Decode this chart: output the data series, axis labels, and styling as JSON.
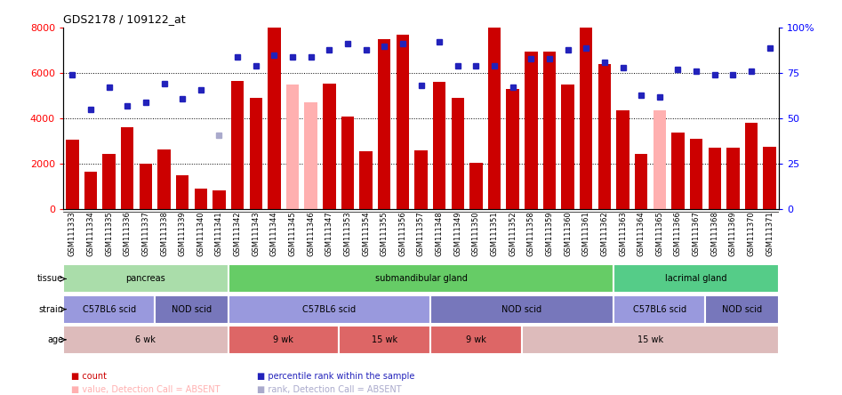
{
  "title": "GDS2178 / 109122_at",
  "samples": [
    "GSM111333",
    "GSM111334",
    "GSM111335",
    "GSM111336",
    "GSM111337",
    "GSM111338",
    "GSM111339",
    "GSM111340",
    "GSM111341",
    "GSM111342",
    "GSM111343",
    "GSM111344",
    "GSM111345",
    "GSM111346",
    "GSM111347",
    "GSM111353",
    "GSM111354",
    "GSM111355",
    "GSM111356",
    "GSM111357",
    "GSM111348",
    "GSM111349",
    "GSM111350",
    "GSM111351",
    "GSM111352",
    "GSM111358",
    "GSM111359",
    "GSM111360",
    "GSM111361",
    "GSM111362",
    "GSM111363",
    "GSM111364",
    "GSM111365",
    "GSM111366",
    "GSM111367",
    "GSM111368",
    "GSM111369",
    "GSM111370",
    "GSM111371"
  ],
  "bar_values": [
    3050,
    1650,
    2450,
    3600,
    2000,
    2650,
    1500,
    900,
    850,
    5650,
    4900,
    8000,
    5500,
    4700,
    5550,
    4100,
    2550,
    7500,
    7700,
    2600,
    5600,
    4900,
    2050,
    8000,
    5300,
    6950,
    6950,
    5500,
    8000,
    6400,
    4350,
    2450,
    4350,
    3400,
    3100,
    2700,
    2700,
    3800,
    2750
  ],
  "bar_absent": [
    false,
    false,
    false,
    false,
    false,
    false,
    false,
    false,
    false,
    false,
    false,
    false,
    true,
    true,
    false,
    false,
    false,
    false,
    false,
    false,
    false,
    false,
    false,
    false,
    false,
    false,
    false,
    false,
    false,
    false,
    false,
    false,
    true,
    false,
    false,
    false,
    false,
    false,
    false
  ],
  "percentile_values": [
    74,
    55,
    67,
    57,
    59,
    69,
    61,
    66,
    41,
    84,
    79,
    85,
    84,
    84,
    88,
    91,
    88,
    90,
    91,
    68,
    92,
    79,
    79,
    79,
    67,
    83,
    83,
    88,
    89,
    81,
    78,
    63,
    62,
    77,
    76,
    74,
    74,
    76,
    89
  ],
  "percentile_absent": [
    false,
    false,
    false,
    false,
    false,
    false,
    false,
    false,
    true,
    false,
    false,
    false,
    false,
    false,
    false,
    false,
    false,
    false,
    false,
    false,
    false,
    false,
    false,
    false,
    false,
    false,
    false,
    false,
    false,
    false,
    false,
    false,
    false,
    false,
    false,
    false,
    false,
    false,
    false
  ],
  "ylim_left": [
    0,
    8000
  ],
  "ylim_right": [
    0,
    100
  ],
  "yticks_left": [
    0,
    2000,
    4000,
    6000,
    8000
  ],
  "yticks_right": [
    0,
    25,
    50,
    75,
    100
  ],
  "bar_color": "#CC0000",
  "bar_absent_color": "#FFB0B0",
  "dot_color": "#2222BB",
  "dot_absent_color": "#AAAACC",
  "tissue_groups": [
    {
      "label": "pancreas",
      "start": 0,
      "end": 9,
      "color": "#AADDAA"
    },
    {
      "label": "submandibular gland",
      "start": 9,
      "end": 30,
      "color": "#66CC66"
    },
    {
      "label": "lacrimal gland",
      "start": 30,
      "end": 39,
      "color": "#55CC88"
    }
  ],
  "strain_groups": [
    {
      "label": "C57BL6 scid",
      "start": 0,
      "end": 5,
      "color": "#9999DD"
    },
    {
      "label": "NOD scid",
      "start": 5,
      "end": 9,
      "color": "#7777BB"
    },
    {
      "label": "C57BL6 scid",
      "start": 9,
      "end": 20,
      "color": "#9999DD"
    },
    {
      "label": "NOD scid",
      "start": 20,
      "end": 30,
      "color": "#7777BB"
    },
    {
      "label": "C57BL6 scid",
      "start": 30,
      "end": 35,
      "color": "#9999DD"
    },
    {
      "label": "NOD scid",
      "start": 35,
      "end": 39,
      "color": "#7777BB"
    }
  ],
  "age_groups": [
    {
      "label": "6 wk",
      "start": 0,
      "end": 9,
      "color": "#DDBBBB"
    },
    {
      "label": "9 wk",
      "start": 9,
      "end": 15,
      "color": "#DD6666"
    },
    {
      "label": "15 wk",
      "start": 15,
      "end": 20,
      "color": "#DD6666"
    },
    {
      "label": "9 wk",
      "start": 20,
      "end": 25,
      "color": "#DD6666"
    },
    {
      "label": "15 wk",
      "start": 25,
      "end": 39,
      "color": "#DDBBBB"
    }
  ],
  "legend_items": [
    {
      "label": "count",
      "color": "#CC0000"
    },
    {
      "label": "percentile rank within the sample",
      "color": "#2222BB"
    },
    {
      "label": "value, Detection Call = ABSENT",
      "color": "#FFB0B0"
    },
    {
      "label": "rank, Detection Call = ABSENT",
      "color": "#AAAACC"
    }
  ]
}
